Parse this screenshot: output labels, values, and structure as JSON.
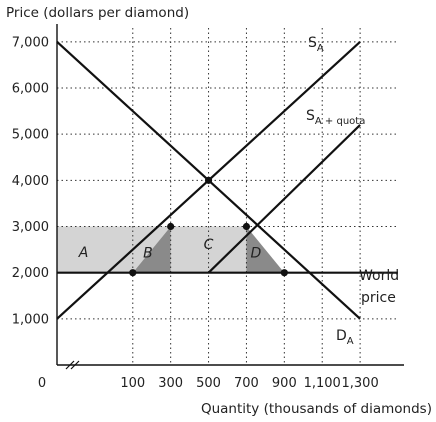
{
  "chart_data": {
    "type": "line",
    "ylabel": "Price (dollars per diamond)",
    "xlabel": "Quantity (thousands of diamonds)",
    "origin_label": "0",
    "x_ticks": [
      100,
      300,
      500,
      700,
      900,
      1100,
      1300
    ],
    "x_tick_labels": [
      "100",
      "300",
      "500",
      "700",
      "900",
      "1,100",
      "1,300"
    ],
    "y_ticks": [
      1000,
      2000,
      3000,
      4000,
      5000,
      6000,
      7000
    ],
    "y_tick_labels": [
      "1,000",
      "2,000",
      "3,000",
      "4,000",
      "5,000",
      "6,000",
      "7,000"
    ],
    "xlim": [
      -300,
      1500
    ],
    "ylim": [
      0,
      7300
    ],
    "axis_break": true,
    "grid": true,
    "series": [
      {
        "name": "S",
        "subscript": "A",
        "points": [
          [
            -300,
            1000
          ],
          [
            1300,
            7000
          ]
        ],
        "color": "#111111"
      },
      {
        "name": "S",
        "subscript": "A + quota",
        "points": [
          [
            500,
            2000
          ],
          [
            1300,
            5200
          ]
        ],
        "color": "#111111"
      },
      {
        "name": "D",
        "subscript": "A",
        "points": [
          [
            -300,
            7000
          ],
          [
            1300,
            1000
          ]
        ],
        "color": "#111111"
      },
      {
        "name": "World price",
        "label_lines": [
          "World",
          "price"
        ],
        "points": [
          [
            -300,
            2000
          ],
          [
            1500,
            2000
          ]
        ],
        "color": "#111111"
      }
    ],
    "points": [
      {
        "x": 100,
        "y": 2000
      },
      {
        "x": 300,
        "y": 3000
      },
      {
        "x": 500,
        "y": 4000
      },
      {
        "x": 700,
        "y": 3000
      },
      {
        "x": 900,
        "y": 2000
      }
    ],
    "regions": [
      {
        "label": "A",
        "polygon": [
          [
            -300,
            2000
          ],
          [
            100,
            2000
          ],
          [
            300,
            3000
          ],
          [
            -300,
            3000
          ]
        ],
        "color": "#d4d4d4"
      },
      {
        "label": "B",
        "polygon": [
          [
            100,
            2000
          ],
          [
            300,
            2000
          ],
          [
            300,
            3000
          ]
        ],
        "color": "#8a8a8a"
      },
      {
        "label": "C",
        "polygon": [
          [
            300,
            2000
          ],
          [
            700,
            2000
          ],
          [
            700,
            3000
          ],
          [
            300,
            3000
          ]
        ],
        "color": "#d4d4d4"
      },
      {
        "label": "D",
        "polygon": [
          [
            700,
            2000
          ],
          [
            900,
            2000
          ],
          [
            700,
            3000
          ]
        ],
        "color": "#8a8a8a"
      }
    ],
    "quota_base_line": [
      [
        500,
        2000
      ],
      [
        700,
        2000
      ]
    ]
  }
}
